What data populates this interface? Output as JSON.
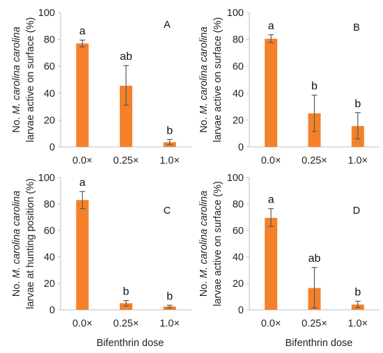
{
  "figure": {
    "bar_color": "#F4812A",
    "x_title_left": "Bifenthrin dose",
    "x_title_right": "Bifenthrin dose"
  },
  "chart_data": [
    {
      "type": "bar",
      "panel_label": "A",
      "categories": [
        "0.0×",
        "0.25×",
        "1.0×"
      ],
      "values": [
        77,
        45.5,
        3.5
      ],
      "error_low": [
        74.5,
        31,
        1.8
      ],
      "error_high": [
        79.5,
        60.5,
        5.5
      ],
      "significance": [
        "a",
        "ab",
        "b"
      ],
      "ylabel": {
        "prefix": "No. ",
        "italic": "M. carolina carolina",
        "line2": "larvae active on surface (%)"
      },
      "yticks": [
        0,
        20,
        40,
        60,
        80,
        100
      ],
      "ylim": [
        0,
        100
      ],
      "grid": false
    },
    {
      "type": "bar",
      "panel_label": "B",
      "categories": [
        "0.0×",
        "0.25×",
        "1.0×"
      ],
      "values": [
        80.5,
        25,
        15.5
      ],
      "error_low": [
        77.5,
        11.5,
        6
      ],
      "error_high": [
        83.5,
        38.5,
        25.5
      ],
      "significance": [
        "a",
        "b",
        "b"
      ],
      "ylabel": {
        "prefix": "No. ",
        "italic": "M. carolina carolina",
        "line2": "larvae active on surface (%)"
      },
      "yticks": [
        0,
        20,
        40,
        60,
        80,
        100
      ],
      "ylim": [
        0,
        100
      ],
      "grid": false
    },
    {
      "type": "bar",
      "panel_label": "C",
      "categories": [
        "0.0×",
        "0.25×",
        "1.0×"
      ],
      "values": [
        83,
        5,
        2.5
      ],
      "error_low": [
        76.5,
        3,
        1.5
      ],
      "error_high": [
        89.5,
        7,
        3.5
      ],
      "significance": [
        "a",
        "b",
        "b"
      ],
      "ylabel": {
        "prefix": "No. ",
        "italic": "M. carolina carolina",
        "line2": "larvae at hunting position (%)"
      },
      "yticks": [
        0,
        20,
        40,
        60,
        80,
        100
      ],
      "ylim": [
        0,
        100
      ],
      "grid": false
    },
    {
      "type": "bar",
      "panel_label": "D",
      "categories": [
        "0.0×",
        "0.25×",
        "1.0×"
      ],
      "values": [
        69.5,
        16.5,
        4
      ],
      "error_low": [
        63,
        1.5,
        1.8
      ],
      "error_high": [
        76.5,
        32,
        6.5
      ],
      "significance": [
        "a",
        "ab",
        "b"
      ],
      "ylabel": {
        "prefix": "No. ",
        "italic": "M. carolina carolina",
        "line2": "larvae active on surface (%)"
      },
      "yticks": [
        0,
        20,
        40,
        60,
        80,
        100
      ],
      "ylim": [
        0,
        100
      ],
      "grid": false
    }
  ]
}
